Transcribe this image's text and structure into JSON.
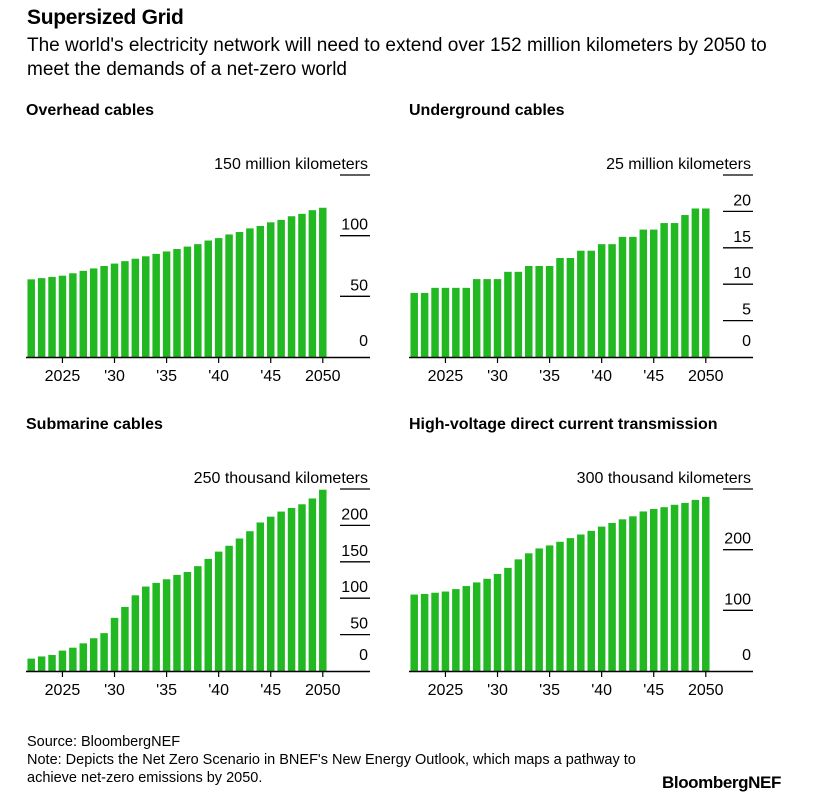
{
  "header": {
    "title": "Supersized Grid",
    "subtitle": "The world's electricity network will need to extend over 152 million kilometers by 2050 to meet the demands of a net-zero world"
  },
  "footer": {
    "source": "Source: BloombergNEF",
    "note": "Note: Depicts the Net Zero Scenario in BNEF's New Energy Outlook, which maps a pathway to achieve net-zero emissions by 2050.",
    "brand": "BloombergNEF"
  },
  "colors": {
    "bar": "#22b822",
    "axis": "#000000",
    "text": "#000000"
  },
  "chart_data": [
    {
      "type": "bar",
      "title": "Overhead cables",
      "unit_label": "150 million kilometers",
      "x": [
        2022,
        2023,
        2024,
        2025,
        2026,
        2027,
        2028,
        2029,
        2030,
        2031,
        2032,
        2033,
        2034,
        2035,
        2036,
        2037,
        2038,
        2039,
        2040,
        2041,
        2042,
        2043,
        2044,
        2045,
        2046,
        2047,
        2048,
        2049,
        2050
      ],
      "values": [
        64,
        65,
        66,
        67,
        69,
        71,
        73,
        75,
        77,
        79,
        81,
        83,
        85,
        87,
        89,
        91,
        93,
        96,
        98,
        101,
        103,
        106,
        108,
        111,
        113,
        116,
        118,
        121,
        123
      ],
      "ylim": [
        0,
        150
      ],
      "yticks": [
        0,
        50,
        100,
        150
      ],
      "ytick_labels": [
        "0",
        "50",
        "100",
        "150 million kilometers"
      ],
      "xticks": [
        2025,
        2030,
        2035,
        2040,
        2045,
        2050
      ],
      "xtick_labels": [
        "2025",
        "'30",
        "'35",
        "'40",
        "'45",
        "2050"
      ]
    },
    {
      "type": "bar",
      "title": "Underground cables",
      "unit_label": "25 million kilometers",
      "x": [
        2022,
        2023,
        2024,
        2025,
        2026,
        2027,
        2028,
        2029,
        2030,
        2031,
        2032,
        2033,
        2034,
        2035,
        2036,
        2037,
        2038,
        2039,
        2040,
        2041,
        2042,
        2043,
        2044,
        2045,
        2046,
        2047,
        2048,
        2049,
        2050
      ],
      "values": [
        8.8,
        8.8,
        9.5,
        9.5,
        9.5,
        9.5,
        10.7,
        10.7,
        10.7,
        11.7,
        11.7,
        12.5,
        12.5,
        12.5,
        13.6,
        13.6,
        14.6,
        14.6,
        15.5,
        15.5,
        16.5,
        16.5,
        17.5,
        17.5,
        18.4,
        18.4,
        19.5,
        20.4,
        20.4
      ],
      "ylim": [
        0,
        25
      ],
      "yticks": [
        0,
        5,
        10,
        15,
        20,
        25
      ],
      "ytick_labels": [
        "0",
        "5",
        "10",
        "15",
        "20",
        "25 million kilometers"
      ],
      "xticks": [
        2025,
        2030,
        2035,
        2040,
        2045,
        2050
      ],
      "xtick_labels": [
        "2025",
        "'30",
        "'35",
        "'40",
        "'45",
        "2050"
      ]
    },
    {
      "type": "bar",
      "title": "Submarine cables",
      "unit_label": "250 thousand kilometers",
      "x": [
        2022,
        2023,
        2024,
        2025,
        2026,
        2027,
        2028,
        2029,
        2030,
        2031,
        2032,
        2033,
        2034,
        2035,
        2036,
        2037,
        2038,
        2039,
        2040,
        2041,
        2042,
        2043,
        2044,
        2045,
        2046,
        2047,
        2048,
        2049,
        2050
      ],
      "values": [
        17,
        20,
        22,
        28,
        32,
        38,
        45,
        52,
        73,
        88,
        104,
        116,
        121,
        126,
        132,
        136,
        144,
        154,
        164,
        172,
        182,
        192,
        204,
        212,
        219,
        224,
        229,
        237,
        249
      ],
      "ylim": [
        0,
        250
      ],
      "yticks": [
        0,
        50,
        100,
        150,
        200,
        250
      ],
      "ytick_labels": [
        "0",
        "50",
        "100",
        "150",
        "200",
        "250 thousand kilometers"
      ],
      "xticks": [
        2025,
        2030,
        2035,
        2040,
        2045,
        2050
      ],
      "xtick_labels": [
        "2025",
        "'30",
        "'35",
        "'40",
        "'45",
        "2050"
      ]
    },
    {
      "type": "bar",
      "title": "High-voltage direct current transmission",
      "unit_label": "300 thousand kilometers",
      "x": [
        2022,
        2023,
        2024,
        2025,
        2026,
        2027,
        2028,
        2029,
        2030,
        2031,
        2032,
        2033,
        2034,
        2035,
        2036,
        2037,
        2038,
        2039,
        2040,
        2041,
        2042,
        2043,
        2044,
        2045,
        2046,
        2047,
        2048,
        2049,
        2050
      ],
      "values": [
        126,
        127,
        129,
        131,
        135,
        140,
        146,
        152,
        160,
        170,
        184,
        194,
        202,
        207,
        213,
        219,
        225,
        231,
        238,
        244,
        250,
        255,
        263,
        267,
        270,
        274,
        277,
        282,
        287
      ],
      "ylim": [
        0,
        300
      ],
      "yticks": [
        0,
        100,
        200,
        300
      ],
      "ytick_labels": [
        "0",
        "100",
        "200",
        "300 thousand kilometers"
      ],
      "xticks": [
        2025,
        2030,
        2035,
        2040,
        2045,
        2050
      ],
      "xtick_labels": [
        "2025",
        "'30",
        "'35",
        "'40",
        "'45",
        "2050"
      ]
    }
  ]
}
